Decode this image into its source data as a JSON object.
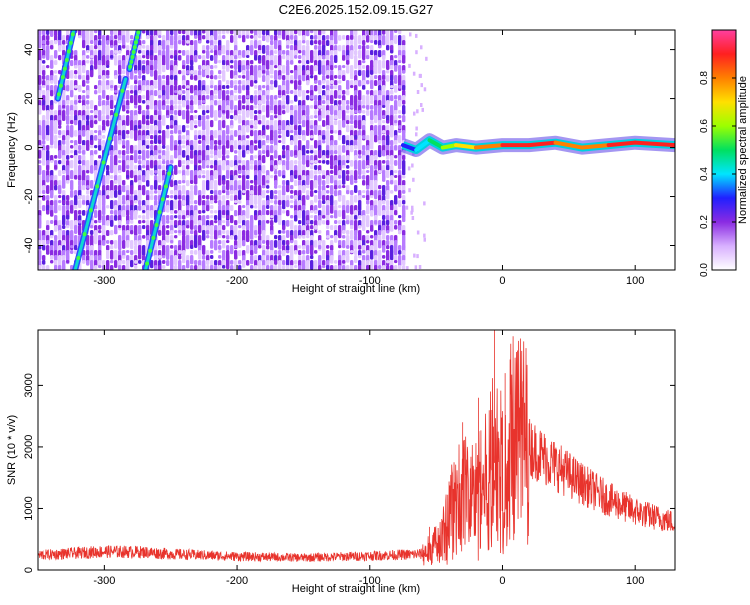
{
  "title": "C2E6.2025.152.09.15.G27",
  "chart_data": [
    {
      "type": "heatmap",
      "xlabel": "Height of straight line (km)",
      "ylabel": "Frequency (Hz)",
      "xlim": [
        -350,
        130
      ],
      "ylim": [
        -50,
        48
      ],
      "xticks": [
        -300,
        -200,
        -100,
        0,
        100
      ],
      "yticks": [
        -40,
        -20,
        0,
        20,
        40
      ],
      "colorbar": {
        "label": "Normalized spectral amplitude",
        "range": [
          0,
          1
        ],
        "ticks": [
          "0.0",
          "0.2",
          "0.4",
          "0.6",
          "0.8"
        ],
        "tick_values": [
          0.0,
          0.2,
          0.4,
          0.6,
          0.8
        ],
        "colors": [
          "#ffffff",
          "#d8b0ff",
          "#8a2be2",
          "#2020ff",
          "#00e5ff",
          "#00e060",
          "#9cff00",
          "#ffe000",
          "#ff8000",
          "#ff2020",
          "#ff3fa0"
        ]
      },
      "noise_region_x": [
        -350,
        -75
      ],
      "features": {
        "tracks": [
          {
            "x": [
              -335,
              -323
            ],
            "y": [
              20,
              48
            ]
          },
          {
            "x": [
              -322,
              -284
            ],
            "y": [
              -50,
              28
            ]
          },
          {
            "x": [
              -269,
              -250
            ],
            "y": [
              -50,
              -8
            ]
          },
          {
            "x": [
              -281,
              -274
            ],
            "y": [
              32,
              48
            ]
          }
        ],
        "center_line": {
          "x": [
            -75,
            -65,
            -55,
            -45,
            -35,
            -20,
            0,
            20,
            40,
            60,
            80,
            100,
            130
          ],
          "y": [
            1,
            -1,
            3,
            0,
            1,
            0,
            1,
            1,
            2,
            0,
            1,
            2,
            1
          ],
          "amplitude": [
            0.4,
            0.35,
            0.45,
            0.55,
            0.7,
            0.8,
            0.85,
            0.95,
            0.9,
            0.75,
            0.85,
            0.95,
            0.9
          ]
        }
      }
    },
    {
      "type": "line",
      "xlabel": "Height of straight line (km)",
      "ylabel": "SNR (10 * v/v)",
      "xlim": [
        -350,
        130
      ],
      "ylim": [
        0,
        3900
      ],
      "xticks": [
        -300,
        -200,
        -100,
        0,
        100
      ],
      "yticks": [
        0,
        1000,
        2000,
        3000
      ],
      "color": "#e8332c",
      "envelope": {
        "x": [
          -350,
          -300,
          -270,
          -250,
          -200,
          -150,
          -100,
          -60,
          -45,
          -40,
          -30,
          -20,
          -10,
          -5,
          0,
          5,
          10,
          15,
          20,
          40,
          60,
          80,
          100,
          130
        ],
        "y": [
          240,
          300,
          290,
          260,
          220,
          200,
          230,
          260,
          500,
          900,
          1300,
          1200,
          1500,
          1800,
          1600,
          1900,
          2000,
          2200,
          2000,
          1700,
          1400,
          1150,
          950,
          770
        ]
      },
      "peaks": [
        {
          "x": -55,
          "y": 700
        },
        {
          "x": -30,
          "y": 2400
        },
        {
          "x": -18,
          "y": 2800
        },
        {
          "x": -8,
          "y": 2600
        },
        {
          "x": -6,
          "y": 3900
        },
        {
          "x": 2,
          "y": 3200
        },
        {
          "x": 12,
          "y": 3200
        }
      ]
    }
  ]
}
